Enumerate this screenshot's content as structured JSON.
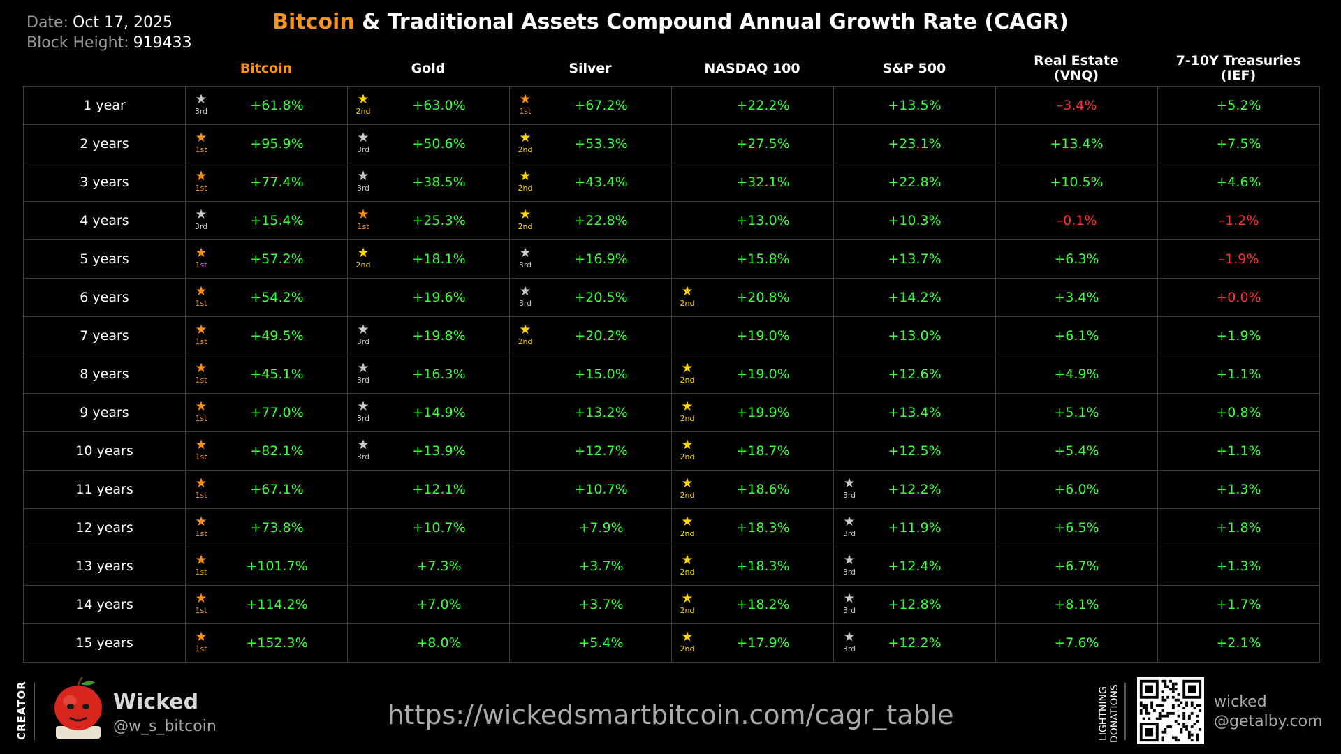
{
  "header": {
    "date_label": "Date:",
    "date_value": "Oct 17, 2025",
    "block_label": "Block Height:",
    "block_value": "919433",
    "title_highlight": "Bitcoin",
    "title_rest": " & Traditional Assets Compound Annual Growth Rate (CAGR)"
  },
  "colors": {
    "bitcoin": "#f7931a",
    "positive": "#3cff3c",
    "negative": "#ff3333",
    "rank_1st": "#f7931a",
    "rank_2nd": "#ffd700",
    "rank_3rd": "#c8c8c8"
  },
  "chart_data": {
    "type": "table",
    "columns": [
      "Bitcoin",
      "Gold",
      "Silver",
      "NASDAQ 100",
      "S&P 500",
      "Real Estate\n(VNQ)",
      "7-10Y Treasuries\n(IEF)"
    ],
    "rank_labels": [
      "1st",
      "2nd",
      "3rd"
    ],
    "rows": [
      {
        "period": "1 year",
        "values": [
          "+61.8%",
          "+63.0%",
          "+67.2%",
          "+22.2%",
          "+13.5%",
          "–3.4%",
          "+5.2%"
        ],
        "ranks": [
          3,
          2,
          1,
          0,
          0,
          0,
          0
        ]
      },
      {
        "period": "2 years",
        "values": [
          "+95.9%",
          "+50.6%",
          "+53.3%",
          "+27.5%",
          "+23.1%",
          "+13.4%",
          "+7.5%"
        ],
        "ranks": [
          1,
          3,
          2,
          0,
          0,
          0,
          0
        ]
      },
      {
        "period": "3 years",
        "values": [
          "+77.4%",
          "+38.5%",
          "+43.4%",
          "+32.1%",
          "+22.8%",
          "+10.5%",
          "+4.6%"
        ],
        "ranks": [
          1,
          3,
          2,
          0,
          0,
          0,
          0
        ]
      },
      {
        "period": "4 years",
        "values": [
          "+15.4%",
          "+25.3%",
          "+22.8%",
          "+13.0%",
          "+10.3%",
          "–0.1%",
          "–1.2%"
        ],
        "ranks": [
          3,
          1,
          2,
          0,
          0,
          0,
          0
        ]
      },
      {
        "period": "5 years",
        "values": [
          "+57.2%",
          "+18.1%",
          "+16.9%",
          "+15.8%",
          "+13.7%",
          "+6.3%",
          "–1.9%"
        ],
        "ranks": [
          1,
          2,
          3,
          0,
          0,
          0,
          0
        ]
      },
      {
        "period": "6 years",
        "values": [
          "+54.2%",
          "+19.6%",
          "+20.5%",
          "+20.8%",
          "+14.2%",
          "+3.4%",
          "+0.0%"
        ],
        "ranks": [
          1,
          0,
          3,
          2,
          0,
          0,
          0
        ]
      },
      {
        "period": "7 years",
        "values": [
          "+49.5%",
          "+19.8%",
          "+20.2%",
          "+19.0%",
          "+13.0%",
          "+6.1%",
          "+1.9%"
        ],
        "ranks": [
          1,
          3,
          2,
          0,
          0,
          0,
          0
        ]
      },
      {
        "period": "8 years",
        "values": [
          "+45.1%",
          "+16.3%",
          "+15.0%",
          "+19.0%",
          "+12.6%",
          "+4.9%",
          "+1.1%"
        ],
        "ranks": [
          1,
          3,
          0,
          2,
          0,
          0,
          0
        ]
      },
      {
        "period": "9 years",
        "values": [
          "+77.0%",
          "+14.9%",
          "+13.2%",
          "+19.9%",
          "+13.4%",
          "+5.1%",
          "+0.8%"
        ],
        "ranks": [
          1,
          3,
          0,
          2,
          0,
          0,
          0
        ]
      },
      {
        "period": "10 years",
        "values": [
          "+82.1%",
          "+13.9%",
          "+12.7%",
          "+18.7%",
          "+12.5%",
          "+5.4%",
          "+1.1%"
        ],
        "ranks": [
          1,
          3,
          0,
          2,
          0,
          0,
          0
        ]
      },
      {
        "period": "11 years",
        "values": [
          "+67.1%",
          "+12.1%",
          "+10.7%",
          "+18.6%",
          "+12.2%",
          "+6.0%",
          "+1.3%"
        ],
        "ranks": [
          1,
          0,
          0,
          2,
          3,
          0,
          0
        ]
      },
      {
        "period": "12 years",
        "values": [
          "+73.8%",
          "+10.7%",
          "+7.9%",
          "+18.3%",
          "+11.9%",
          "+6.5%",
          "+1.8%"
        ],
        "ranks": [
          1,
          0,
          0,
          2,
          3,
          0,
          0
        ]
      },
      {
        "period": "13 years",
        "values": [
          "+101.7%",
          "+7.3%",
          "+3.7%",
          "+18.3%",
          "+12.4%",
          "+6.7%",
          "+1.3%"
        ],
        "ranks": [
          1,
          0,
          0,
          2,
          3,
          0,
          0
        ]
      },
      {
        "period": "14 years",
        "values": [
          "+114.2%",
          "+7.0%",
          "+3.7%",
          "+18.2%",
          "+12.8%",
          "+8.1%",
          "+1.7%"
        ],
        "ranks": [
          1,
          0,
          0,
          2,
          3,
          0,
          0
        ]
      },
      {
        "period": "15 years",
        "values": [
          "+152.3%",
          "+8.0%",
          "+5.4%",
          "+17.9%",
          "+12.2%",
          "+7.6%",
          "+2.1%"
        ],
        "ranks": [
          1,
          0,
          0,
          2,
          3,
          0,
          0
        ]
      }
    ]
  },
  "footer": {
    "creator_label": "CREATOR",
    "creator_name": "Wicked",
    "creator_handle": "@w_s_bitcoin",
    "url": "https://wickedsmartbitcoin.com/cagr_table",
    "lightning_label": "LIGHTNING\nDONATIONS",
    "wallet_line1": "wicked",
    "wallet_line2": "@getalby.com"
  }
}
